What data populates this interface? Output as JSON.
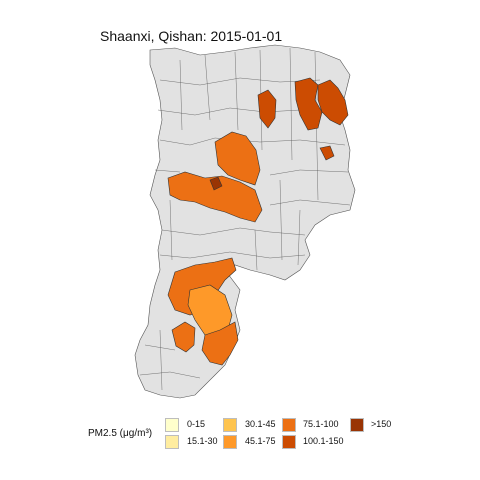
{
  "title": "Shaanxi, Qishan: 2015-01-01",
  "legend": {
    "title": "PM2.5 (μg/m³)",
    "items": [
      {
        "label": "0-15",
        "color": "#ffffcc"
      },
      {
        "label": "15.1-30",
        "color": "#ffeda0"
      },
      {
        "label": "30.1-45",
        "color": "#fec44f"
      },
      {
        "label": "45.1-75",
        "color": "#fe9929"
      },
      {
        "label": "75.1-100",
        "color": "#ec7014"
      },
      {
        "label": "100.1-150",
        "color": "#cc4c02"
      },
      {
        "label": ">150",
        "color": "#993404"
      }
    ]
  },
  "colors": {
    "background_region": "#e2e2e2",
    "region_border": "#555555"
  }
}
